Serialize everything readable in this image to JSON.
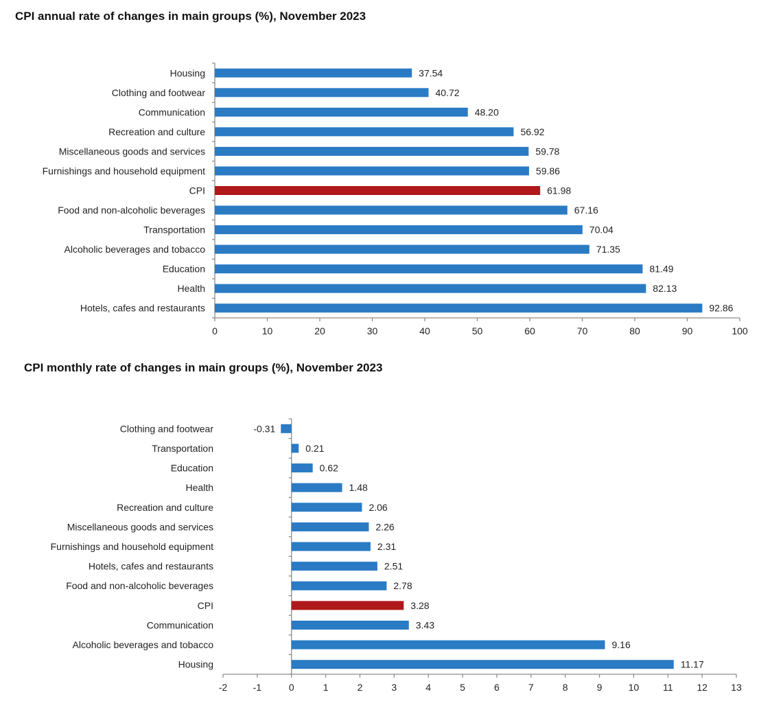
{
  "colors": {
    "bar": "#2a7bc4",
    "highlight": "#b0191c",
    "axis": "#8c8c8c"
  },
  "chart_data": [
    {
      "type": "bar",
      "orientation": "horizontal",
      "title": "CPI annual rate of changes in main groups (%), November 2023",
      "xlabel": "",
      "ylabel": "",
      "xlim": [
        0,
        100
      ],
      "ticks": [
        0,
        10,
        20,
        30,
        40,
        50,
        60,
        70,
        80,
        90,
        100
      ],
      "grid": false,
      "legend": "none",
      "highlight_category": "CPI",
      "categories": [
        "Housing",
        "Clothing and footwear",
        "Communication",
        "Recreation and culture",
        "Miscellaneous goods and services",
        "Furnishings and household equipment",
        "CPI",
        "Food and non-alcoholic beverages",
        "Transportation",
        "Alcoholic beverages and tobacco",
        "Education",
        "Health",
        "Hotels, cafes and restaurants"
      ],
      "values": [
        37.54,
        40.72,
        48.2,
        56.92,
        59.78,
        59.86,
        61.98,
        67.16,
        70.04,
        71.35,
        81.49,
        82.13,
        92.86
      ],
      "value_labels": [
        "37.54",
        "40.72",
        "48.20",
        "56.92",
        "59.78",
        "59.86",
        "61.98",
        "67.16",
        "70.04",
        "71.35",
        "81.49",
        "82.13",
        "92.86"
      ]
    },
    {
      "type": "bar",
      "orientation": "horizontal",
      "title": "CPI monthly rate of changes in main groups (%), November 2023",
      "xlabel": "",
      "ylabel": "",
      "xlim": [
        -2,
        13
      ],
      "ticks": [
        -2,
        -1,
        0,
        1,
        2,
        3,
        4,
        5,
        6,
        7,
        8,
        9,
        10,
        11,
        12,
        13
      ],
      "grid": false,
      "legend": "none",
      "highlight_category": "CPI",
      "categories": [
        "Clothing and footwear",
        "Transportation",
        "Education",
        "Health",
        "Recreation and culture",
        "Miscellaneous goods and services",
        "Furnishings and household equipment",
        "Hotels, cafes and restaurants",
        "Food and non-alcoholic beverages",
        "CPI",
        "Communication",
        "Alcoholic beverages and tobacco",
        "Housing"
      ],
      "values": [
        -0.31,
        0.21,
        0.62,
        1.48,
        2.06,
        2.26,
        2.31,
        2.51,
        2.78,
        3.28,
        3.43,
        9.16,
        11.17
      ],
      "value_labels": [
        "-0.31",
        "0.21",
        "0.62",
        "1.48",
        "2.06",
        "2.26",
        "2.31",
        "2.51",
        "2.78",
        "3.28",
        "3.43",
        "9.16",
        "11.17"
      ]
    }
  ]
}
